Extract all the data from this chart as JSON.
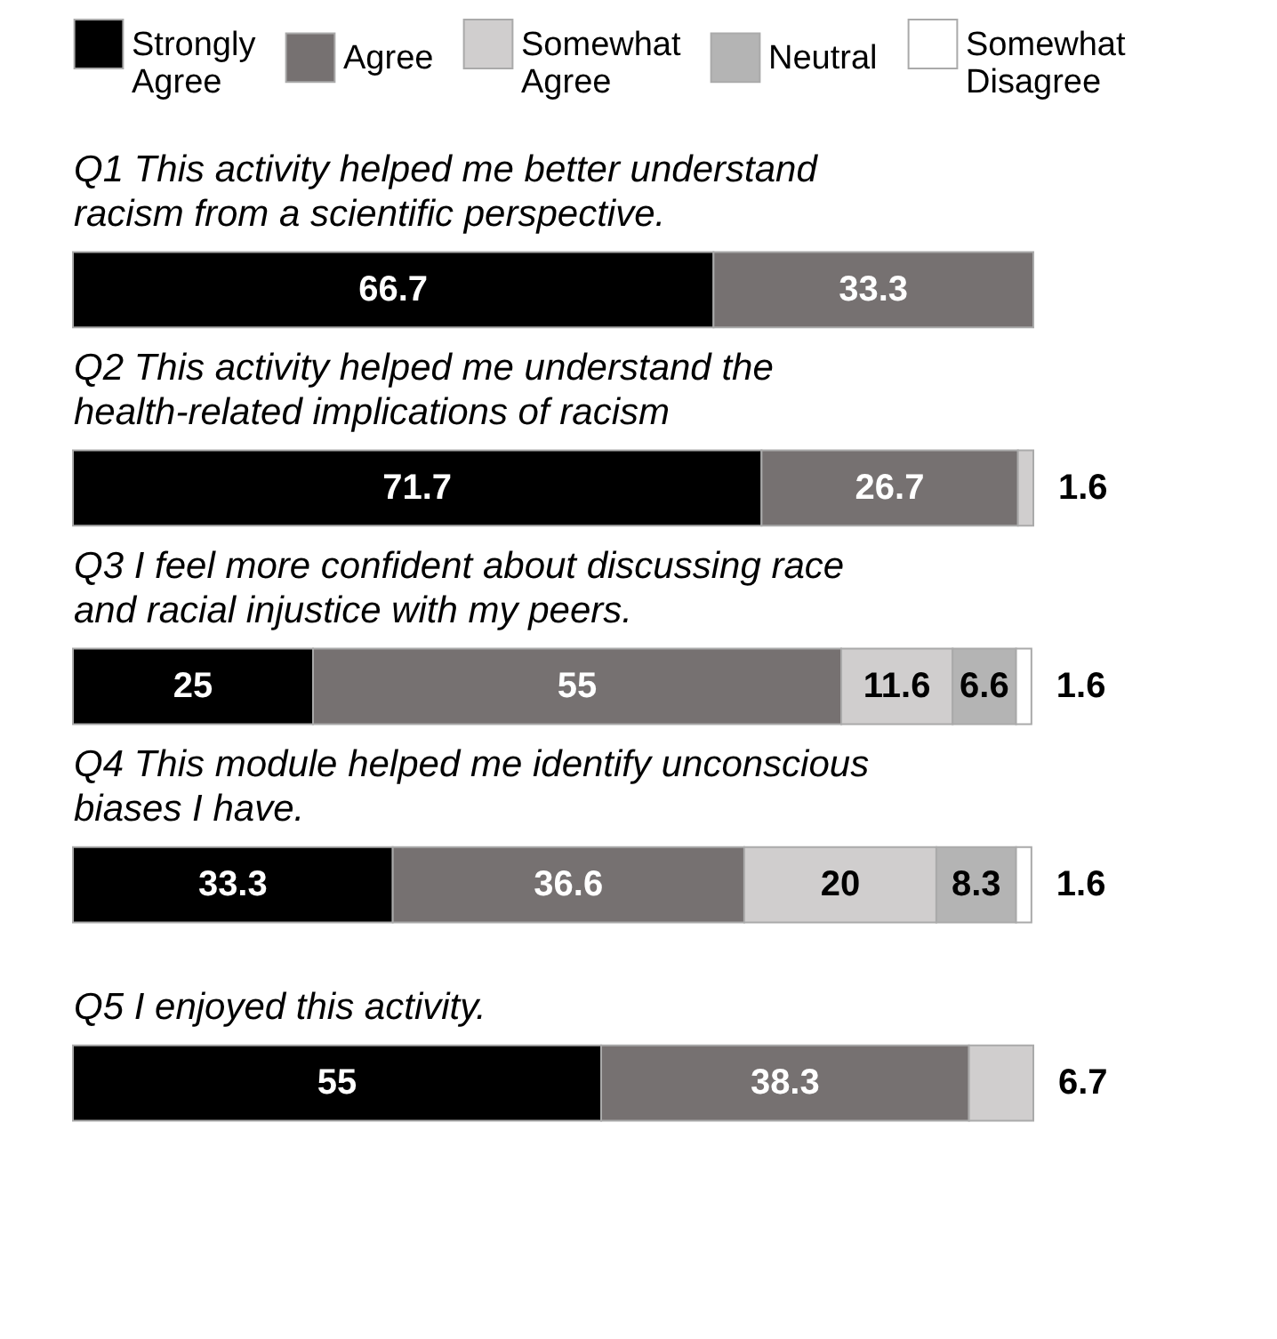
{
  "chart_data": {
    "type": "bar",
    "orientation": "horizontal",
    "stacked": true,
    "data_labels": true,
    "legend": "top",
    "tick_labels": "y",
    "categories": [
      "Q1 This activity helped me better understand racism from a scientific perspective.",
      "Q2 This activity helped me understand the health-related implications of racism",
      "Q3 I feel more confident about discussing race and racial injustice with my peers.",
      "Q4 This module helped me identify unconscious biases I have.",
      "Q5 I enjoyed this activity."
    ],
    "series": [
      {
        "name": "Strongly Agree",
        "color": "#000000",
        "values": [
          66.7,
          71.7,
          25,
          33.3,
          55
        ]
      },
      {
        "name": "Agree",
        "color": "#767171",
        "values": [
          33.3,
          26.7,
          55,
          36.6,
          38.3
        ]
      },
      {
        "name": "Somewhat Agree",
        "color": "#d0cece",
        "values": [
          null,
          1.6,
          11.6,
          20,
          6.7
        ]
      },
      {
        "name": "Neutral",
        "color": "#b4b4b4",
        "values": [
          null,
          null,
          6.6,
          8.3,
          null
        ]
      },
      {
        "name": "Somewhat Disagree",
        "color": "#ffffff",
        "values": [
          null,
          null,
          1.6,
          1.6,
          null
        ]
      }
    ]
  }
}
